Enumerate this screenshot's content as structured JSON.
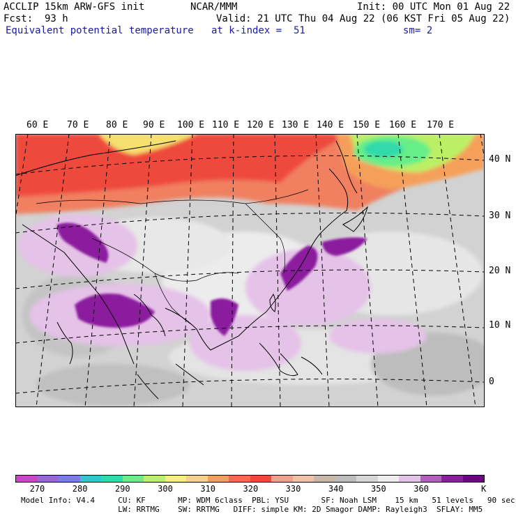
{
  "header": {
    "model": "ACCLIP 15km ARW-GFS init",
    "org": "NCAR/MMM",
    "init": "Init: 00 UTC Mon 01 Aug 22",
    "fcst": "Fcst:  93 h",
    "valid": "Valid: 21 UTC Thu 04 Aug 22 (06 KST Fri 05 Aug 22)",
    "field": "Equivalent potential temperature",
    "level": "at k-index =  51",
    "smooth": "sm= 2"
  },
  "longitude_labels": [
    "60 E",
    "70 E",
    "80 E",
    "90 E",
    "100 E",
    "110 E",
    "120 E",
    "130 E",
    "140 E",
    "150 E",
    "160 E",
    "170 E"
  ],
  "latitude_labels": [
    "40 N",
    "30 N",
    "20 N",
    "10 N",
    "0"
  ],
  "colorbar": {
    "unit": "K",
    "tick_labels": [
      "270",
      "280",
      "290",
      "300",
      "310",
      "320",
      "330",
      "340",
      "350",
      "360"
    ],
    "colors": [
      "#cc44cc",
      "#9966dd",
      "#7b7bee",
      "#33c6cc",
      "#33d9aa",
      "#66ee88",
      "#bbf066",
      "#f6f07a",
      "#f7d28a",
      "#f5a05a",
      "#f76a4e",
      "#ee4a3c",
      "#f2a08e",
      "#eec1a8",
      "#c8b8aa",
      "#bdbdbd",
      "#d6d6d6",
      "#eeeeee",
      "#e5c2e8",
      "#b25fbe",
      "#8b1e9e",
      "#6e0088"
    ]
  },
  "footer": {
    "line1": "Model Info: V4.4     CU: KF       MP: WDM 6class  PBL: YSU       SF: Noah LSM    15 km   51 levels   90 sec",
    "line2": "                     LW: RRTMG    SW: RRTMG   DIFF: simple KM: 2D Smagor DAMP: Rayleigh3  SFLAY: MM5"
  }
}
